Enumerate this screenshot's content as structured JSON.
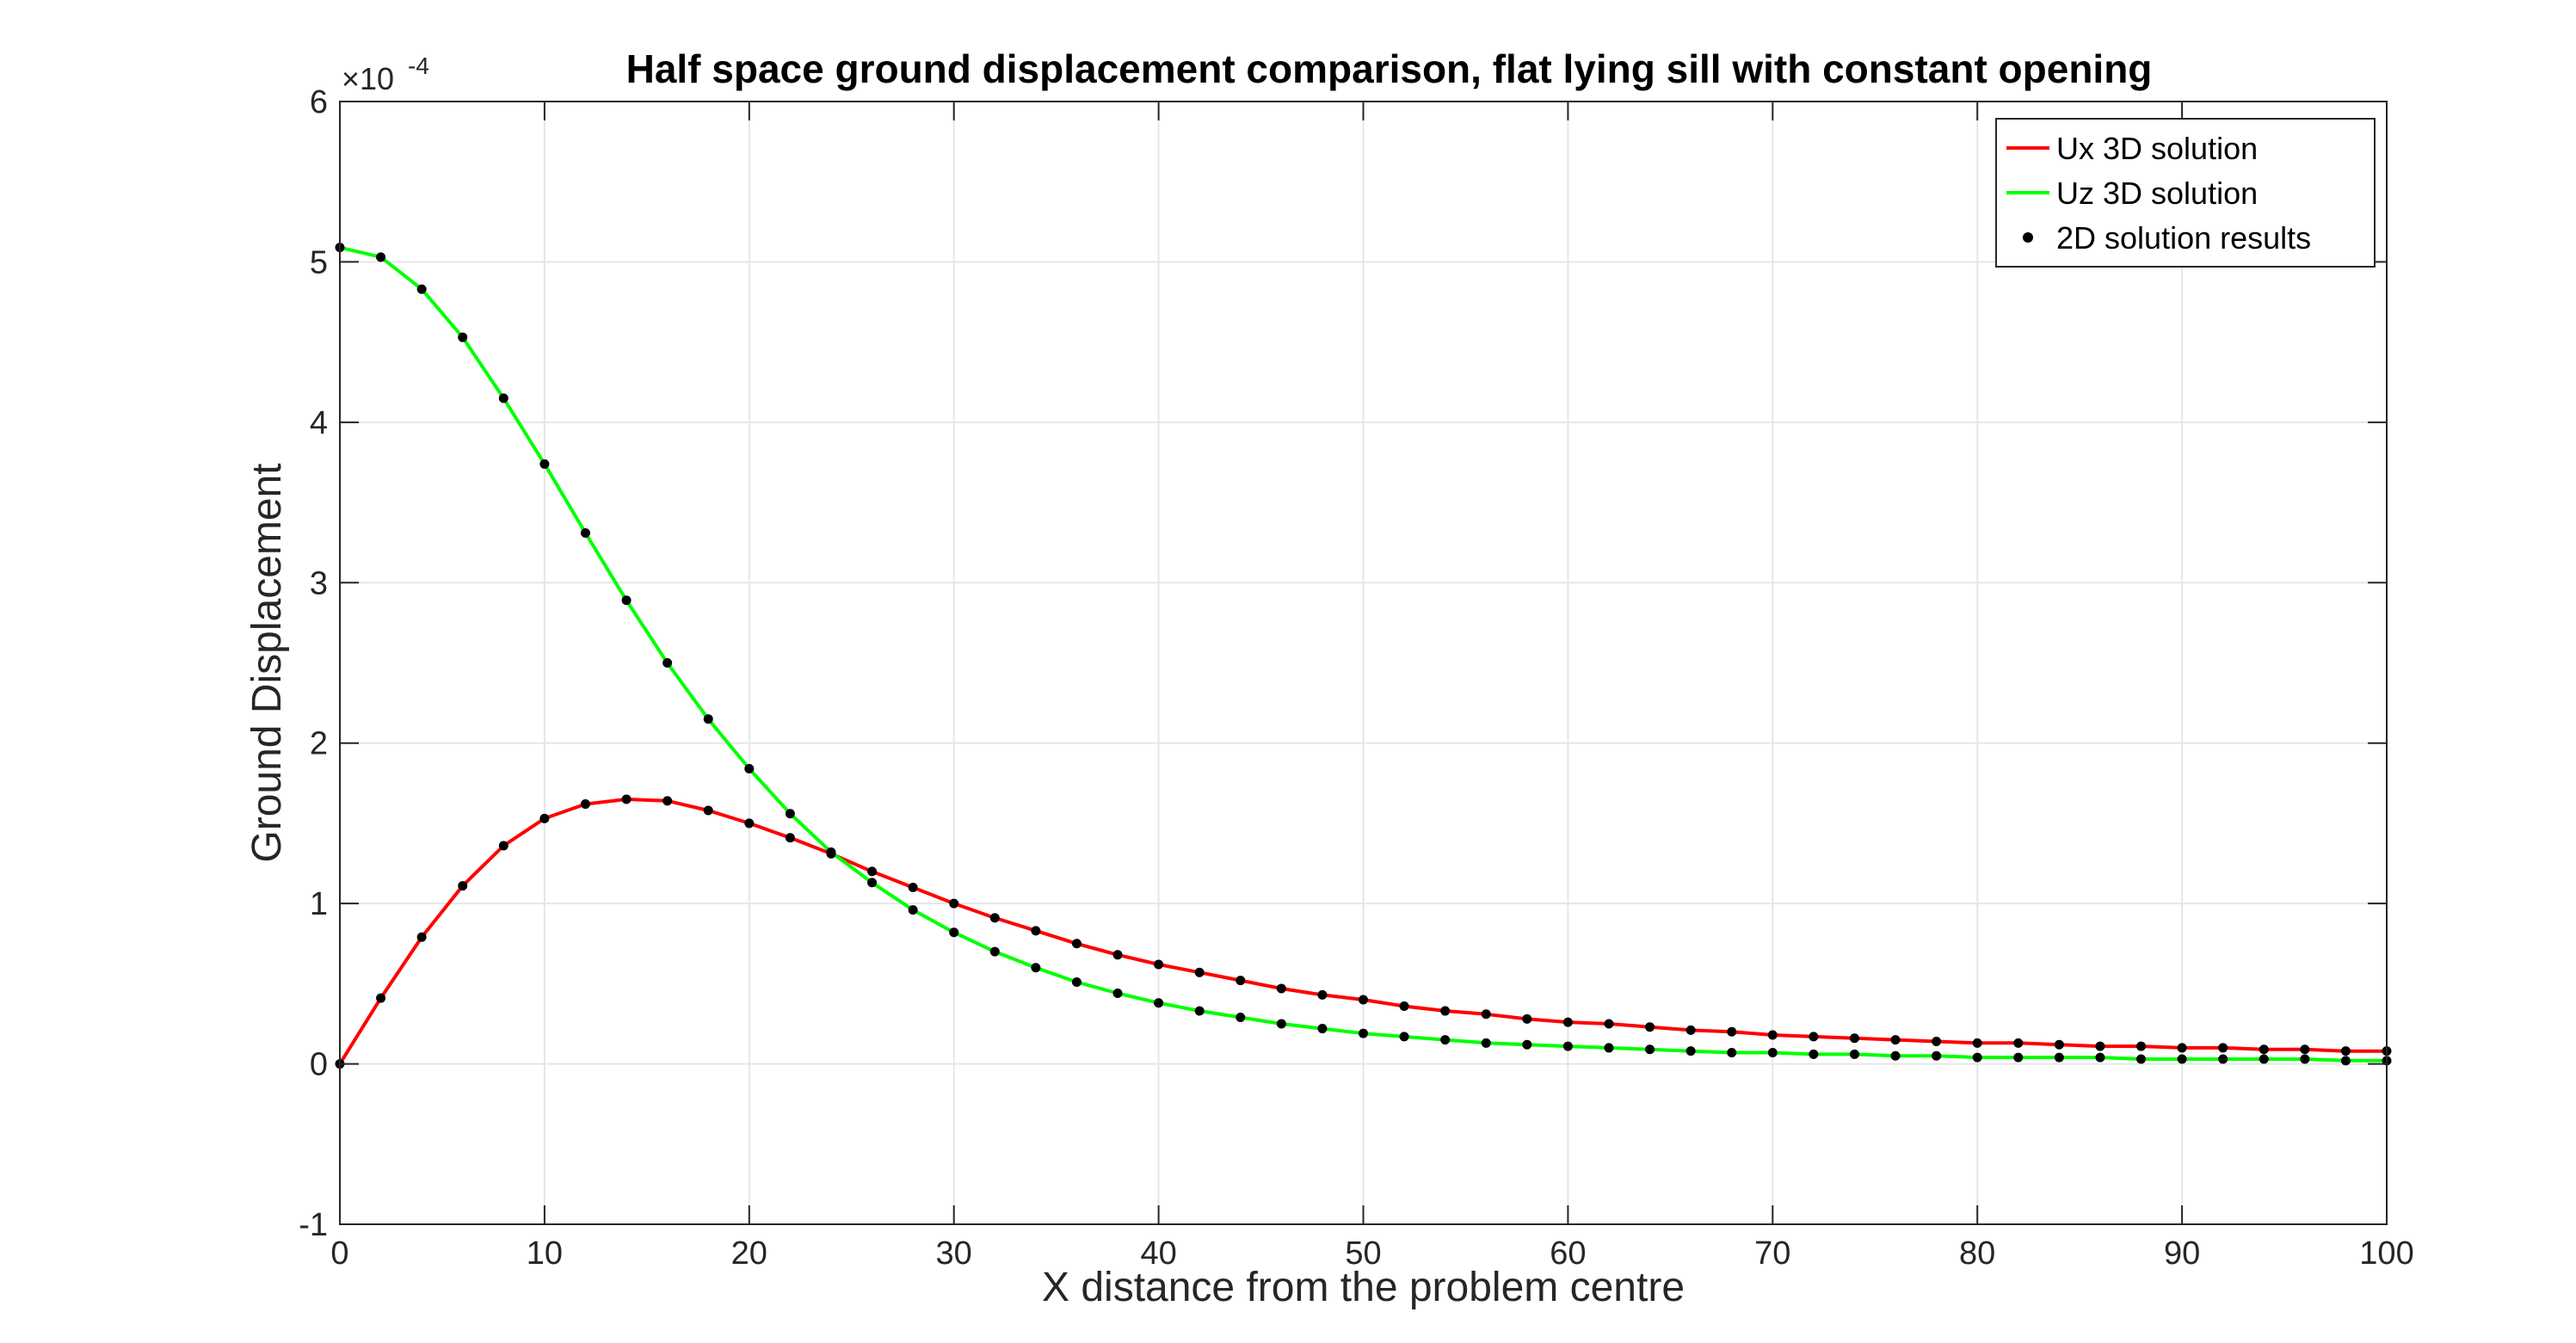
{
  "chart_data": {
    "type": "line",
    "title": "Half space ground displacement comparison, flat lying sill with constant opening",
    "xlabel": "X distance from the problem centre",
    "ylabel": "Ground Displacement",
    "y_exponent_label": "×10",
    "y_exponent_power": "-4",
    "xlim": [
      0,
      100
    ],
    "ylim": [
      -1,
      6
    ],
    "y_scale_factor": 0.0001,
    "xticks": [
      0,
      10,
      20,
      30,
      40,
      50,
      60,
      70,
      80,
      90,
      100
    ],
    "yticks": [
      -1,
      0,
      1,
      2,
      3,
      4,
      5,
      6
    ],
    "xtick_labels": [
      "0",
      "10",
      "20",
      "30",
      "40",
      "50",
      "60",
      "70",
      "80",
      "90",
      "100"
    ],
    "ytick_labels": [
      "-1",
      "0",
      "1",
      "2",
      "3",
      "4",
      "5",
      "6"
    ],
    "grid": true,
    "legend_position": "top-right",
    "x": [
      0,
      2,
      4,
      6,
      8,
      10,
      12,
      14,
      16,
      18,
      20,
      22,
      24,
      26,
      28,
      30,
      32,
      34,
      36,
      38,
      40,
      42,
      44,
      46,
      48,
      50,
      52,
      54,
      56,
      58,
      60,
      62,
      64,
      66,
      68,
      70,
      72,
      74,
      76,
      78,
      80,
      82,
      84,
      86,
      88,
      90,
      92,
      94,
      96,
      98,
      100
    ],
    "series": [
      {
        "name": "Ux 3D solution",
        "color": "#ff0000",
        "style": "line",
        "values": [
          0,
          0.41,
          0.79,
          1.11,
          1.36,
          1.53,
          1.62,
          1.65,
          1.64,
          1.58,
          1.5,
          1.41,
          1.31,
          1.2,
          1.1,
          1.0,
          0.91,
          0.83,
          0.75,
          0.68,
          0.62,
          0.57,
          0.52,
          0.47,
          0.43,
          0.4,
          0.36,
          0.33,
          0.31,
          0.28,
          0.26,
          0.25,
          0.23,
          0.21,
          0.2,
          0.18,
          0.17,
          0.16,
          0.15,
          0.14,
          0.13,
          0.13,
          0.12,
          0.11,
          0.11,
          0.1,
          0.1,
          0.09,
          0.09,
          0.08,
          0.08
        ]
      },
      {
        "name": "Uz 3D solution",
        "color": "#00ff00",
        "style": "line",
        "values": [
          5.09,
          5.03,
          4.83,
          4.53,
          4.15,
          3.74,
          3.31,
          2.89,
          2.5,
          2.15,
          1.84,
          1.56,
          1.32,
          1.13,
          0.96,
          0.82,
          0.7,
          0.6,
          0.51,
          0.44,
          0.38,
          0.33,
          0.29,
          0.25,
          0.22,
          0.19,
          0.17,
          0.15,
          0.13,
          0.12,
          0.11,
          0.1,
          0.09,
          0.08,
          0.07,
          0.07,
          0.06,
          0.06,
          0.05,
          0.05,
          0.04,
          0.04,
          0.04,
          0.04,
          0.03,
          0.03,
          0.03,
          0.03,
          0.03,
          0.02,
          0.02
        ]
      },
      {
        "name": "2D solution results",
        "color": "#000000",
        "style": "markers",
        "sampled_from": [
          "Ux 3D solution",
          "Uz 3D solution"
        ]
      }
    ]
  }
}
